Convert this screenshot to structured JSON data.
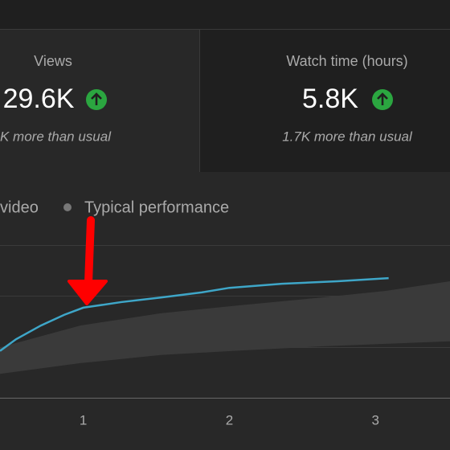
{
  "cards": [
    {
      "label": "Views",
      "value": "29.6K",
      "note": "K more than usual"
    },
    {
      "label": "Watch time (hours)",
      "value": "5.8K",
      "note": "1.7K more than usual"
    }
  ],
  "chart_data": {
    "type": "line",
    "xlim": [
      0.43,
      3.51
    ],
    "ylim": [
      0,
      3
    ],
    "xticks": [
      1,
      2,
      3
    ],
    "series": [
      {
        "name": "video",
        "color": "#3ea6c8",
        "x": [
          0.43,
          0.54,
          0.71,
          0.87,
          1.0,
          1.26,
          1.53,
          1.81,
          2.0,
          2.36,
          2.74,
          3.09
        ],
        "values": [
          0.92,
          1.15,
          1.42,
          1.63,
          1.77,
          1.88,
          1.97,
          2.07,
          2.16,
          2.24,
          2.29,
          2.35
        ]
      },
      {
        "name": "Typical performance",
        "color": "#3a3a3a",
        "x": [
          0.43,
          0.98,
          1.53,
          2.08,
          2.63,
          3.07,
          3.51
        ],
        "upper": [
          0.99,
          1.42,
          1.66,
          1.82,
          1.97,
          2.1,
          2.29
        ],
        "lower": [
          0.47,
          0.68,
          0.84,
          0.93,
          1.01,
          1.06,
          1.11
        ]
      }
    ]
  }
}
